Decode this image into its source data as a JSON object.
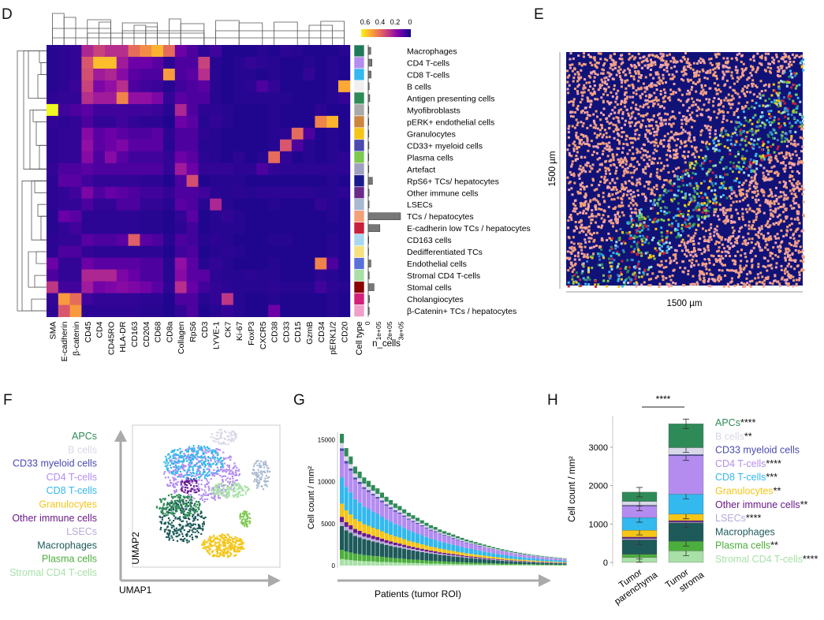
{
  "panels": {
    "D": "D",
    "E": "E",
    "F": "F",
    "G": "G",
    "H": "H"
  },
  "colors": {
    "viridis": [
      "#0d0887",
      "#3b049a",
      "#6a00a8",
      "#900da4",
      "#b12a90",
      "#cc4778",
      "#e16462",
      "#f1844b",
      "#fca636",
      "#fccd25",
      "#f0f921"
    ]
  },
  "heatmap": {
    "markers": [
      "SMA",
      "E-cadherin",
      "β-catenin",
      "CD45",
      "CD4",
      "CD45RO",
      "HLA-DR",
      "CD163",
      "CD204",
      "CD68",
      "CD8a",
      "Collagen",
      "RpS6",
      "CD3",
      "LYVE-1",
      "CK7",
      "Ki-67",
      "FoxP3",
      "CXCR5",
      "CD38",
      "CD33",
      "CD15",
      "GzmB",
      "CD34",
      "pERK1/2",
      "CD20"
    ],
    "cell_types": [
      "Macrophages",
      "CD4 T-cells",
      "CD8 T-cells",
      "B cells",
      "Antigen presenting cells",
      "Myofibroblasts",
      "pERK+ endothelial cells",
      "Granulocytes",
      "CD33+ myeloid cells",
      "Plasma cells",
      "Artefact",
      "RpS6+ TCs/ hepatocytes",
      "Other immune cells",
      "LSECs",
      "TCs / hepatocytes",
      "E-cadherin low TCs / hepatocytes",
      "CD163 cells",
      "Dedifferentiated TCs",
      "Endothelial cells",
      "Stromal CD4 T-cells",
      "Stomal cells",
      "Cholangiocytes",
      "β-Catenin+ TCs / hepatocytes"
    ],
    "type_colors": [
      "#1e7a5a",
      "#b48cf0",
      "#33b9ee",
      "#f0f0f0",
      "#2e8b57",
      "#a9a9a9",
      "#cd853f",
      "#f5c518",
      "#4a4ab0",
      "#7ec850",
      "#a0a0c0",
      "#1a1a8c",
      "#6a2a8a",
      "#a8b8d0",
      "#f4a07a",
      "#c8203c",
      "#a8d8f0",
      "#f8e080",
      "#5a70d8",
      "#a8e0a8",
      "#8b0000",
      "#d4207a",
      "#f0a0c8"
    ],
    "n_cells": [
      0.24,
      0.36,
      0.27,
      0.09,
      0.15,
      0.06,
      0.05,
      0.06,
      0.07,
      0.05,
      0.06,
      0.4,
      0.08,
      0.08,
      3.05,
      1.1,
      0.05,
      0.04,
      0.25,
      0.1,
      0.55,
      0.12,
      0.1
    ],
    "values": [
      [
        0.04,
        0.05,
        0.06,
        0.28,
        0.35,
        0.3,
        0.3,
        0.45,
        0.52,
        0.6,
        0.45,
        0.15,
        0.1,
        0.05,
        0.08,
        0.03,
        0.03,
        0.03,
        0.04,
        0.03,
        0.05,
        0.04,
        0.03,
        0.03,
        0.03,
        0.04
      ],
      [
        0.04,
        0.05,
        0.06,
        0.4,
        0.62,
        0.62,
        0.25,
        0.15,
        0.15,
        0.12,
        0.05,
        0.1,
        0.1,
        0.35,
        0.04,
        0.03,
        0.04,
        0.06,
        0.05,
        0.04,
        0.03,
        0.03,
        0.04,
        0.03,
        0.04,
        0.03
      ],
      [
        0.04,
        0.05,
        0.06,
        0.38,
        0.25,
        0.28,
        0.2,
        0.12,
        0.1,
        0.1,
        0.55,
        0.1,
        0.12,
        0.3,
        0.04,
        0.03,
        0.04,
        0.04,
        0.03,
        0.04,
        0.03,
        0.03,
        0.06,
        0.03,
        0.04,
        0.03
      ],
      [
        0.04,
        0.05,
        0.07,
        0.35,
        0.18,
        0.22,
        0.3,
        0.1,
        0.08,
        0.07,
        0.04,
        0.08,
        0.1,
        0.12,
        0.04,
        0.03,
        0.04,
        0.05,
        0.1,
        0.06,
        0.03,
        0.03,
        0.03,
        0.03,
        0.04,
        0.58
      ],
      [
        0.05,
        0.06,
        0.06,
        0.3,
        0.25,
        0.25,
        0.5,
        0.22,
        0.22,
        0.18,
        0.06,
        0.12,
        0.1,
        0.1,
        0.04,
        0.03,
        0.04,
        0.04,
        0.04,
        0.04,
        0.04,
        0.03,
        0.03,
        0.03,
        0.04,
        0.06
      ],
      [
        0.72,
        0.08,
        0.1,
        0.12,
        0.08,
        0.08,
        0.08,
        0.08,
        0.08,
        0.07,
        0.04,
        0.28,
        0.1,
        0.05,
        0.05,
        0.04,
        0.03,
        0.03,
        0.03,
        0.04,
        0.03,
        0.03,
        0.03,
        0.05,
        0.03,
        0.03
      ],
      [
        0.06,
        0.05,
        0.06,
        0.1,
        0.06,
        0.06,
        0.08,
        0.06,
        0.05,
        0.05,
        0.03,
        0.15,
        0.12,
        0.04,
        0.06,
        0.04,
        0.03,
        0.03,
        0.03,
        0.04,
        0.03,
        0.03,
        0.03,
        0.5,
        0.6,
        0.03
      ],
      [
        0.05,
        0.06,
        0.06,
        0.2,
        0.12,
        0.15,
        0.12,
        0.1,
        0.1,
        0.12,
        0.05,
        0.1,
        0.1,
        0.05,
        0.04,
        0.03,
        0.03,
        0.03,
        0.03,
        0.04,
        0.05,
        0.45,
        0.1,
        0.03,
        0.04,
        0.03
      ],
      [
        0.05,
        0.06,
        0.06,
        0.22,
        0.12,
        0.15,
        0.18,
        0.12,
        0.12,
        0.12,
        0.04,
        0.1,
        0.1,
        0.04,
        0.04,
        0.03,
        0.03,
        0.03,
        0.03,
        0.04,
        0.4,
        0.1,
        0.04,
        0.03,
        0.04,
        0.03
      ],
      [
        0.05,
        0.06,
        0.06,
        0.2,
        0.1,
        0.2,
        0.12,
        0.08,
        0.08,
        0.08,
        0.06,
        0.15,
        0.12,
        0.05,
        0.04,
        0.03,
        0.05,
        0.03,
        0.04,
        0.45,
        0.06,
        0.03,
        0.04,
        0.03,
        0.04,
        0.05
      ],
      [
        0.06,
        0.1,
        0.1,
        0.12,
        0.1,
        0.1,
        0.1,
        0.1,
        0.1,
        0.1,
        0.06,
        0.25,
        0.15,
        0.06,
        0.06,
        0.06,
        0.05,
        0.05,
        0.1,
        0.06,
        0.05,
        0.05,
        0.05,
        0.05,
        0.05,
        0.05
      ],
      [
        0.05,
        0.12,
        0.12,
        0.08,
        0.06,
        0.06,
        0.06,
        0.06,
        0.05,
        0.05,
        0.03,
        0.1,
        0.38,
        0.03,
        0.04,
        0.04,
        0.04,
        0.03,
        0.03,
        0.03,
        0.03,
        0.03,
        0.03,
        0.03,
        0.04,
        0.03
      ],
      [
        0.05,
        0.06,
        0.08,
        0.18,
        0.1,
        0.14,
        0.12,
        0.1,
        0.08,
        0.08,
        0.06,
        0.1,
        0.1,
        0.08,
        0.05,
        0.04,
        0.05,
        0.04,
        0.05,
        0.05,
        0.05,
        0.05,
        0.05,
        0.04,
        0.04,
        0.05
      ],
      [
        0.05,
        0.06,
        0.06,
        0.1,
        0.06,
        0.06,
        0.1,
        0.1,
        0.06,
        0.06,
        0.04,
        0.12,
        0.1,
        0.04,
        0.28,
        0.04,
        0.03,
        0.03,
        0.03,
        0.04,
        0.03,
        0.03,
        0.03,
        0.06,
        0.04,
        0.03
      ],
      [
        0.04,
        0.14,
        0.12,
        0.05,
        0.05,
        0.05,
        0.05,
        0.05,
        0.04,
        0.04,
        0.03,
        0.06,
        0.12,
        0.03,
        0.04,
        0.06,
        0.04,
        0.03,
        0.03,
        0.03,
        0.03,
        0.03,
        0.03,
        0.03,
        0.04,
        0.03
      ],
      [
        0.04,
        0.06,
        0.08,
        0.05,
        0.05,
        0.05,
        0.05,
        0.05,
        0.04,
        0.04,
        0.03,
        0.05,
        0.08,
        0.03,
        0.04,
        0.04,
        0.04,
        0.03,
        0.03,
        0.03,
        0.03,
        0.03,
        0.03,
        0.03,
        0.03,
        0.03
      ],
      [
        0.05,
        0.06,
        0.06,
        0.12,
        0.1,
        0.1,
        0.12,
        0.42,
        0.12,
        0.1,
        0.04,
        0.1,
        0.08,
        0.04,
        0.05,
        0.04,
        0.03,
        0.03,
        0.03,
        0.04,
        0.04,
        0.03,
        0.03,
        0.03,
        0.04,
        0.03
      ],
      [
        0.05,
        0.1,
        0.1,
        0.06,
        0.05,
        0.05,
        0.05,
        0.05,
        0.05,
        0.05,
        0.03,
        0.08,
        0.1,
        0.03,
        0.04,
        0.05,
        0.04,
        0.03,
        0.03,
        0.03,
        0.03,
        0.03,
        0.03,
        0.03,
        0.04,
        0.03
      ],
      [
        0.15,
        0.06,
        0.06,
        0.15,
        0.12,
        0.12,
        0.12,
        0.12,
        0.1,
        0.1,
        0.04,
        0.22,
        0.12,
        0.04,
        0.06,
        0.04,
        0.03,
        0.03,
        0.03,
        0.04,
        0.03,
        0.03,
        0.03,
        0.5,
        0.1,
        0.03
      ],
      [
        0.1,
        0.06,
        0.06,
        0.28,
        0.28,
        0.28,
        0.18,
        0.14,
        0.1,
        0.1,
        0.04,
        0.2,
        0.12,
        0.12,
        0.05,
        0.04,
        0.04,
        0.05,
        0.04,
        0.04,
        0.03,
        0.03,
        0.03,
        0.05,
        0.04,
        0.03
      ],
      [
        0.32,
        0.08,
        0.08,
        0.25,
        0.16,
        0.18,
        0.2,
        0.18,
        0.16,
        0.12,
        0.05,
        0.3,
        0.14,
        0.08,
        0.06,
        0.05,
        0.04,
        0.04,
        0.04,
        0.05,
        0.04,
        0.04,
        0.04,
        0.08,
        0.05,
        0.04
      ],
      [
        0.06,
        0.55,
        0.45,
        0.08,
        0.06,
        0.06,
        0.06,
        0.06,
        0.05,
        0.05,
        0.03,
        0.1,
        0.1,
        0.04,
        0.06,
        0.32,
        0.04,
        0.03,
        0.03,
        0.04,
        0.03,
        0.03,
        0.03,
        0.03,
        0.04,
        0.03
      ],
      [
        0.05,
        0.4,
        0.55,
        0.05,
        0.05,
        0.05,
        0.05,
        0.05,
        0.04,
        0.04,
        0.03,
        0.06,
        0.1,
        0.03,
        0.04,
        0.06,
        0.04,
        0.03,
        0.03,
        0.15,
        0.03,
        0.03,
        0.03,
        0.03,
        0.04,
        0.03
      ]
    ],
    "legend_ticks": [
      "0.6",
      "0.4",
      "0.2",
      "0"
    ],
    "celltype_label": "Cell type",
    "ncells_label": "n_cells",
    "ncells_ticks": [
      "0",
      "1e+05",
      "2e+05",
      "3e+05"
    ]
  },
  "spatial": {
    "xlabel": "1500 µm",
    "ylabel": "1500 µm"
  },
  "umap": {
    "xlabel": "UMAP1",
    "ylabel": "UMAP2",
    "legend": [
      {
        "label": "APCs",
        "color": "#2e8b57"
      },
      {
        "label": "B cells",
        "color": "#d8d8e8"
      },
      {
        "label": "CD33 myeloid cells",
        "color": "#4a4ab0"
      },
      {
        "label": "CD4 T-cells",
        "color": "#b48cf0"
      },
      {
        "label": "CD8 T-cells",
        "color": "#33b9ee"
      },
      {
        "label": "Granulocytes",
        "color": "#f5c518"
      },
      {
        "label": "Other immune cells",
        "color": "#6a1a8a"
      },
      {
        "label": "LSECs",
        "color": "#b8a8d8"
      },
      {
        "label": "Macrophages",
        "color": "#1e5a5a"
      },
      {
        "label": "Plasma cells",
        "color": "#4cae3c"
      },
      {
        "label": "Stromal CD4 T-cells",
        "color": "#a8e0a8"
      }
    ]
  },
  "chart_data": [
    {
      "type": "bar",
      "panel": "G",
      "title": "",
      "xlabel": "Patients (tumor ROI)",
      "ylabel": "Cell count / mm²",
      "ylim": [
        0,
        16000
      ],
      "yticks": [
        "0",
        "5000",
        "10000",
        "15000"
      ],
      "stacked": true,
      "series_order": [
        "Stromal CD4 T-cells",
        "Plasma cells",
        "Macrophages",
        "LSECs",
        "Other immune cells",
        "Granulocytes",
        "CD8 T-cells",
        "CD4 T-cells",
        "CD33 myeloid cells",
        "B cells",
        "APCs"
      ],
      "totals": [
        15700,
        14000,
        13000,
        11800,
        11200,
        10500,
        10100,
        9600,
        9200,
        8700,
        8200,
        7800,
        7400,
        7100,
        6700,
        6300,
        6000,
        5700,
        5400,
        5100,
        4800,
        4600,
        4300,
        4100,
        3900,
        3700,
        3500,
        3300,
        3100,
        2950,
        2800,
        2650,
        2500,
        2350,
        2200,
        2080,
        1950,
        1830,
        1720,
        1620,
        1520,
        1430,
        1350,
        1270,
        1200,
        1140,
        1080,
        1020,
        970,
        920,
        870
      ]
    },
    {
      "type": "bar",
      "panel": "H",
      "title": "****",
      "categories": [
        "Tumor parenchyma",
        "Tumor stroma"
      ],
      "ylabel": "Cell count / mm²",
      "ylim": [
        0,
        3700
      ],
      "yticks": [
        0,
        1000,
        2000,
        3000
      ],
      "stacked": true,
      "series": [
        {
          "name": "Stromal CD4 T-cells",
          "sig": "****",
          "values": [
            130,
            300
          ]
        },
        {
          "name": "Plasma cells",
          "sig": "**",
          "values": [
            80,
            250
          ]
        },
        {
          "name": "Macrophages",
          "sig": "",
          "values": [
            380,
            480
          ]
        },
        {
          "name": "LSECs",
          "sig": "****",
          "values": [
            30,
            20
          ]
        },
        {
          "name": "Other immune cells",
          "sig": "**",
          "values": [
            40,
            40
          ]
        },
        {
          "name": "Granulocytes",
          "sig": "**",
          "values": [
            180,
            170
          ]
        },
        {
          "name": "CD8 T-cells",
          "sig": "***",
          "values": [
            330,
            520
          ]
        },
        {
          "name": "CD4 T-cells",
          "sig": "****",
          "values": [
            300,
            1000
          ]
        },
        {
          "name": "CD33 myeloid cells",
          "sig": "",
          "values": [
            20,
            30
          ]
        },
        {
          "name": "B cells",
          "sig": "**",
          "values": [
            100,
            180
          ]
        },
        {
          "name": "APCs",
          "sig": "****",
          "values": [
            240,
            620
          ]
        }
      ]
    }
  ]
}
